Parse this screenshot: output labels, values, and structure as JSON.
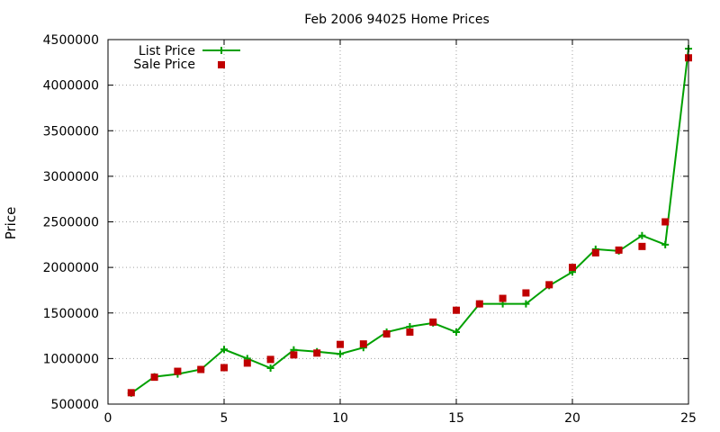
{
  "chart_data": {
    "type": "line",
    "title": "Feb 2006 94025 Home Prices",
    "xlabel": "",
    "ylabel": "Price",
    "xlim": [
      0,
      25
    ],
    "ylim": [
      500000,
      4500000
    ],
    "x_ticks": [
      0,
      5,
      10,
      15,
      20,
      25
    ],
    "y_ticks": [
      500000,
      1000000,
      1500000,
      2000000,
      2500000,
      3000000,
      3500000,
      4000000,
      4500000
    ],
    "grid": true,
    "legend_position": "top-left",
    "series": [
      {
        "name": "List Price",
        "style": "line-with-plus-markers",
        "color": "#00a000",
        "x": [
          1,
          2,
          3,
          4,
          5,
          6,
          7,
          8,
          9,
          10,
          11,
          12,
          13,
          14,
          15,
          16,
          17,
          18,
          19,
          20,
          21,
          22,
          23,
          24,
          25
        ],
        "values": [
          620000,
          800000,
          830000,
          880000,
          1100000,
          1000000,
          895000,
          1095000,
          1075000,
          1050000,
          1120000,
          1290000,
          1350000,
          1390000,
          1290000,
          1600000,
          1600000,
          1600000,
          1800000,
          1950000,
          2200000,
          2180000,
          2350000,
          2250000,
          4400000
        ]
      },
      {
        "name": "Sale Price",
        "style": "square-markers",
        "color": "#c00000",
        "x": [
          1,
          2,
          3,
          4,
          5,
          6,
          7,
          8,
          9,
          10,
          11,
          12,
          13,
          14,
          15,
          16,
          17,
          18,
          19,
          20,
          21,
          22,
          23,
          24,
          25
        ],
        "values": [
          625000,
          795000,
          860000,
          880000,
          900000,
          950000,
          990000,
          1040000,
          1060000,
          1155000,
          1160000,
          1270000,
          1290000,
          1400000,
          1530000,
          1600000,
          1660000,
          1720000,
          1810000,
          2000000,
          2160000,
          2190000,
          2230000,
          2500000,
          4300000
        ]
      }
    ]
  }
}
